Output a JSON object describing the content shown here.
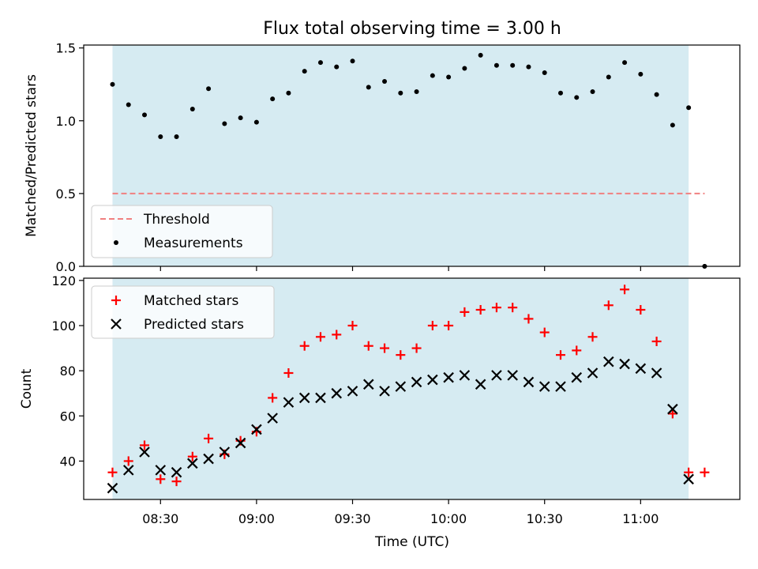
{
  "title": "Flux total observing time = 3.00 h",
  "colors": {
    "shade": "#add8e6",
    "threshold": "#f08080",
    "measurement": "#000000",
    "matched": "#ff0000",
    "predicted": "#000000"
  },
  "chart_data": [
    {
      "type": "scatter",
      "ylabel": "Matched/Predicted stars",
      "ylim": [
        0,
        1.52
      ],
      "yticks": [
        0.0,
        0.5,
        1.0,
        1.5
      ],
      "ytick_labels": [
        "0.0",
        "0.5",
        "1.0",
        "1.5"
      ],
      "xlim": [
        "08:06",
        "11:31"
      ],
      "shaded_interval": [
        "08:15",
        "11:15"
      ],
      "threshold": {
        "name": "Threshold",
        "value": 0.5,
        "x_range": [
          "08:15",
          "11:20"
        ]
      },
      "legend": {
        "placement": "lower-left",
        "entries": [
          "Threshold",
          "Measurements"
        ]
      },
      "series": [
        {
          "name": "Measurements",
          "marker": "dot",
          "x": [
            "08:15",
            "08:20",
            "08:25",
            "08:30",
            "08:35",
            "08:40",
            "08:45",
            "08:50",
            "08:55",
            "09:00",
            "09:05",
            "09:10",
            "09:15",
            "09:20",
            "09:25",
            "09:30",
            "09:35",
            "09:40",
            "09:45",
            "09:50",
            "09:55",
            "10:00",
            "10:05",
            "10:10",
            "10:15",
            "10:20",
            "10:25",
            "10:30",
            "10:35",
            "10:40",
            "10:45",
            "10:50",
            "10:55",
            "11:00",
            "11:05",
            "11:10",
            "11:15",
            "11:20"
          ],
          "y": [
            1.25,
            1.11,
            1.04,
            0.89,
            0.89,
            1.08,
            1.22,
            0.98,
            1.02,
            0.99,
            1.15,
            1.19,
            1.34,
            1.4,
            1.37,
            1.41,
            1.23,
            1.27,
            1.19,
            1.2,
            1.31,
            1.3,
            1.36,
            1.45,
            1.38,
            1.38,
            1.37,
            1.33,
            1.19,
            1.16,
            1.2,
            1.3,
            1.4,
            1.32,
            1.18,
            0.97,
            1.09,
            0.0
          ]
        }
      ]
    },
    {
      "type": "scatter",
      "xlabel": "Time (UTC)",
      "ylabel": "Count",
      "ylim": [
        23,
        121
      ],
      "yticks": [
        40,
        60,
        80,
        100,
        120
      ],
      "ytick_labels": [
        "40",
        "60",
        "80",
        "100",
        "120"
      ],
      "xlim": [
        "08:06",
        "11:31"
      ],
      "xticks": [
        "08:30",
        "09:00",
        "09:30",
        "10:00",
        "10:30",
        "11:00"
      ],
      "shaded_interval": [
        "08:15",
        "11:15"
      ],
      "legend": {
        "placement": "upper-left",
        "entries": [
          "Matched stars",
          "Predicted stars"
        ]
      },
      "series": [
        {
          "name": "Matched stars",
          "marker": "plus",
          "x": [
            "08:15",
            "08:20",
            "08:25",
            "08:30",
            "08:35",
            "08:40",
            "08:45",
            "08:50",
            "08:55",
            "09:00",
            "09:05",
            "09:10",
            "09:15",
            "09:20",
            "09:25",
            "09:30",
            "09:35",
            "09:40",
            "09:45",
            "09:50",
            "09:55",
            "10:00",
            "10:05",
            "10:10",
            "10:15",
            "10:20",
            "10:25",
            "10:30",
            "10:35",
            "10:40",
            "10:45",
            "10:50",
            "10:55",
            "11:00",
            "11:05",
            "11:10",
            "11:15",
            "11:20"
          ],
          "y": [
            35,
            40,
            47,
            32,
            31,
            42,
            50,
            43,
            49,
            53,
            68,
            79,
            91,
            95,
            96,
            100,
            91,
            90,
            87,
            90,
            100,
            100,
            106,
            107,
            108,
            108,
            103,
            97,
            87,
            89,
            95,
            109,
            116,
            107,
            93,
            61,
            35,
            35
          ]
        },
        {
          "name": "Predicted stars",
          "marker": "x",
          "x": [
            "08:15",
            "08:20",
            "08:25",
            "08:30",
            "08:35",
            "08:40",
            "08:45",
            "08:50",
            "08:55",
            "09:00",
            "09:05",
            "09:10",
            "09:15",
            "09:20",
            "09:25",
            "09:30",
            "09:35",
            "09:40",
            "09:45",
            "09:50",
            "09:55",
            "10:00",
            "10:05",
            "10:10",
            "10:15",
            "10:20",
            "10:25",
            "10:30",
            "10:35",
            "10:40",
            "10:45",
            "10:50",
            "10:55",
            "11:00",
            "11:05",
            "11:10",
            "11:15"
          ],
          "y": [
            28,
            36,
            44,
            36,
            35,
            39,
            41,
            44,
            48,
            54,
            59,
            66,
            68,
            68,
            70,
            71,
            74,
            71,
            73,
            75,
            76,
            77,
            78,
            74,
            78,
            78,
            75,
            73,
            73,
            77,
            79,
            84,
            83,
            81,
            79,
            63,
            32
          ]
        }
      ]
    }
  ]
}
